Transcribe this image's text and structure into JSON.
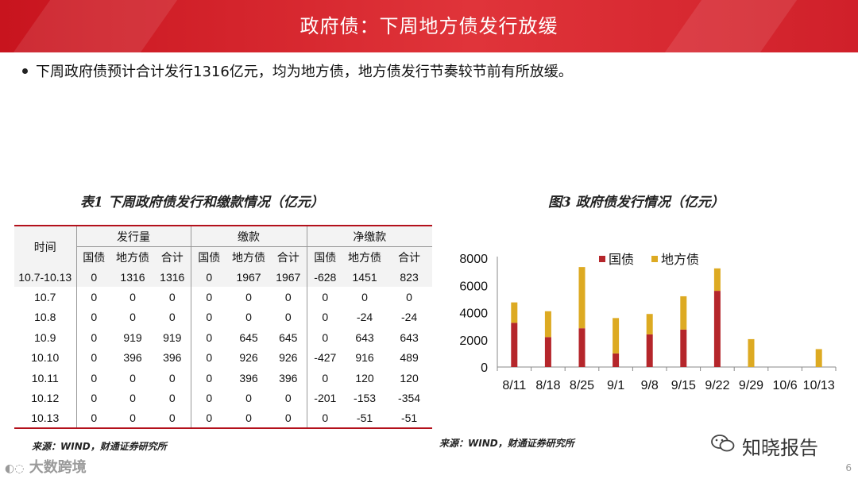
{
  "header": {
    "title": "政府债：下周地方债发行放缓"
  },
  "bullet": "下周政府债预计合计发行1316亿元，均为地方债，地方债发行节奏较节前有所放缓。",
  "table": {
    "caption": "表1 下周政府债发行和缴款情况（亿元）",
    "time_label": "时间",
    "groups": [
      "发行量",
      "缴款",
      "净缴款"
    ],
    "subheaders": [
      "国债",
      "地方债",
      "合计"
    ],
    "rows": [
      [
        "10.7-10.13",
        "0",
        "1316",
        "1316",
        "0",
        "1967",
        "1967",
        "-628",
        "1451",
        "823"
      ],
      [
        "10.7",
        "0",
        "0",
        "0",
        "0",
        "0",
        "0",
        "0",
        "0",
        "0"
      ],
      [
        "10.8",
        "0",
        "0",
        "0",
        "0",
        "0",
        "0",
        "0",
        "-24",
        "-24"
      ],
      [
        "10.9",
        "0",
        "919",
        "919",
        "0",
        "645",
        "645",
        "0",
        "643",
        "643"
      ],
      [
        "10.10",
        "0",
        "396",
        "396",
        "0",
        "926",
        "926",
        "-427",
        "916",
        "489"
      ],
      [
        "10.11",
        "0",
        "0",
        "0",
        "0",
        "396",
        "396",
        "0",
        "120",
        "120"
      ],
      [
        "10.12",
        "0",
        "0",
        "0",
        "0",
        "0",
        "0",
        "-201",
        "-153",
        "-354"
      ],
      [
        "10.13",
        "0",
        "0",
        "0",
        "0",
        "0",
        "0",
        "0",
        "-51",
        "-51"
      ]
    ],
    "source": "来源：WIND，财通证券研究所"
  },
  "chart_data": {
    "type": "bar",
    "stacked": true,
    "title": "图3 政府债发行情况（亿元）",
    "categories": [
      "8/11",
      "8/18",
      "8/25",
      "9/1",
      "9/8",
      "9/15",
      "9/22",
      "9/29",
      "10/6",
      "10/13"
    ],
    "series": [
      {
        "name": "国债",
        "color": "#b5262b",
        "values": [
          3250,
          2200,
          2850,
          1000,
          2400,
          2750,
          5600,
          0,
          0,
          0
        ]
      },
      {
        "name": "地方债",
        "color": "#ddaa22",
        "values": [
          1500,
          1900,
          4500,
          2600,
          1500,
          2450,
          1650,
          2050,
          0,
          1316
        ]
      }
    ],
    "ylim": [
      0,
      8000
    ],
    "yticks": [
      "8000",
      "6000",
      "4000",
      "2000",
      "0"
    ],
    "legend": "top",
    "source": "来源：WIND，财通证券研究所"
  },
  "footer": {
    "watermark": "知晓报告",
    "logo": "大数跨境",
    "page": "6"
  }
}
